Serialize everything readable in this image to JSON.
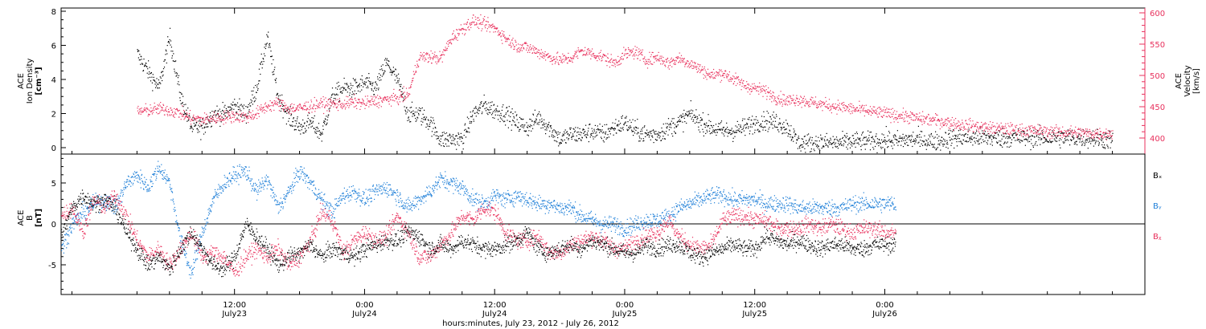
{
  "colors": {
    "axis": "#000000",
    "density": "#000000",
    "velocity": "#e8305c",
    "bx": "#000000",
    "by": "#1e7fd8",
    "bz": "#e8305c"
  },
  "chart_data": [
    {
      "type": "scatter",
      "panel": "top",
      "ylabel": "ACE\nIon Density\n[cm⁻³]",
      "ylabel_lines": [
        "ACE",
        "Ion Density",
        "[cm⁻³]"
      ],
      "y_ticks": [
        "0",
        "2",
        "4",
        "6",
        "8"
      ],
      "ylim": [
        -0.4,
        8.2
      ],
      "y2label_lines": [
        "ACE",
        "Velocity",
        "[km/s]"
      ],
      "y2_ticks": [
        "400",
        "450",
        "500",
        "550",
        "600"
      ],
      "y2lim": [
        380,
        607
      ],
      "x_unit": "hours since 00:00 July 23, 2012",
      "xlim": [
        3.0,
        94.5
      ],
      "series": [
        {
          "name": "Ion Density",
          "color": "#000000",
          "x": [
            3.0,
            4.0,
            5.0,
            6.0,
            7.0,
            8.0,
            9.0,
            10.0,
            11.0,
            12.0,
            13.0,
            14.0,
            15.0,
            16.0,
            17.0,
            18.0,
            19.0,
            20.0,
            21.0,
            22.0,
            23.0,
            24.0,
            25.0,
            26.0,
            27.0,
            28.0,
            29.0,
            30.0,
            31.0,
            32.0,
            33.0,
            34.0,
            35.0,
            36.0,
            37.0,
            38.0,
            39.0,
            40.0,
            41.0,
            42.0,
            43.0,
            44.0,
            45.0,
            46.0,
            47.0,
            48.0,
            49.0,
            50.0,
            51.0,
            52.0,
            53.0,
            54.0,
            55.0,
            56.0,
            57.0,
            58.0,
            59.0,
            60.0,
            61.0,
            62.0,
            63.0,
            64.0,
            65.0,
            66.0,
            67.0,
            68.0,
            69.0,
            70.0,
            71.0,
            72.0,
            73.0,
            74.0,
            75.0,
            76.0,
            77.0,
            78.0,
            79.0,
            80.0,
            81.0,
            82.0,
            83.0,
            84.0,
            85.0,
            86.0,
            87.0,
            88.0,
            89.0,
            90.0,
            91.0,
            92.0,
            93.0
          ],
          "values": [
            5.5,
            4.5,
            3.5,
            6.5,
            3.0,
            1.2,
            1.2,
            2.0,
            2.0,
            2.5,
            2.0,
            3.5,
            6.5,
            3.0,
            1.8,
            1.2,
            1.5,
            0.8,
            3.0,
            3.5,
            3.5,
            3.8,
            3.5,
            5.0,
            4.0,
            2.0,
            2.0,
            1.5,
            0.5,
            0.5,
            0.5,
            2.0,
            2.5,
            2.2,
            2.0,
            1.5,
            1.2,
            1.8,
            1.2,
            0.5,
            0.8,
            0.8,
            1.0,
            0.8,
            1.2,
            1.5,
            1.0,
            0.8,
            0.8,
            1.2,
            1.5,
            2.0,
            1.5,
            1.2,
            1.0,
            1.0,
            1.2,
            1.5,
            1.6,
            1.5,
            1.2,
            0.3,
            0.3,
            0.3,
            0.3,
            0.3,
            0.4,
            0.4,
            0.4,
            0.5,
            0.4,
            0.5,
            0.5,
            0.4,
            0.4,
            0.6,
            0.6,
            0.6,
            0.6,
            0.6,
            0.6,
            0.6,
            0.6,
            0.6,
            0.6,
            0.6,
            0.6,
            0.6,
            0.6,
            0.5,
            0.5
          ]
        },
        {
          "name": "Velocity",
          "axis": "right",
          "color": "#e8305c",
          "x": [
            3.0,
            4.0,
            5.0,
            6.0,
            7.0,
            8.0,
            9.0,
            10.0,
            11.0,
            12.0,
            13.0,
            14.0,
            15.0,
            16.0,
            17.0,
            18.0,
            19.0,
            20.0,
            21.0,
            22.0,
            23.0,
            24.0,
            25.0,
            26.0,
            27.0,
            28.0,
            29.0,
            30.0,
            31.0,
            32.0,
            33.0,
            34.0,
            35.0,
            36.0,
            37.0,
            38.0,
            39.0,
            40.0,
            41.0,
            42.0,
            43.0,
            44.0,
            45.0,
            46.0,
            47.0,
            48.0,
            49.0,
            50.0,
            51.0,
            52.0,
            53.0,
            54.0,
            55.0,
            56.0,
            57.0,
            58.0,
            59.0,
            60.0,
            61.0,
            62.0,
            63.0,
            64.0,
            65.0,
            66.0,
            67.0,
            68.0,
            69.0,
            70.0,
            71.0,
            72.0,
            73.0,
            74.0,
            75.0,
            76.0,
            77.0,
            78.0,
            79.0,
            80.0,
            81.0,
            82.0,
            83.0,
            84.0,
            85.0,
            86.0,
            87.0,
            88.0,
            89.0,
            90.0,
            91.0,
            92.0,
            93.0
          ],
          "values": [
            443,
            445,
            447,
            445,
            440,
            432,
            430,
            432,
            434,
            436,
            434,
            440,
            452,
            456,
            448,
            448,
            452,
            455,
            455,
            455,
            458,
            456,
            460,
            462,
            465,
            470,
            530,
            530,
            528,
            560,
            575,
            588,
            582,
            576,
            560,
            548,
            545,
            538,
            530,
            525,
            528,
            540,
            535,
            530,
            520,
            535,
            538,
            525,
            530,
            520,
            528,
            520,
            510,
            500,
            505,
            495,
            485,
            480,
            475,
            465,
            460,
            463,
            458,
            455,
            452,
            450,
            447,
            445,
            442,
            440,
            437,
            435,
            432,
            430,
            428,
            425,
            422,
            420,
            418,
            416,
            415,
            414,
            413,
            412,
            411,
            410,
            410,
            409,
            408,
            408,
            408
          ]
        }
      ]
    },
    {
      "type": "scatter",
      "panel": "bottom",
      "ylabel_lines": [
        "ACE",
        "B",
        "[nT]"
      ],
      "y_ticks": [
        "-5",
        "0",
        "5"
      ],
      "ylim": [
        -8.0,
        8.0
      ],
      "x_ticks": [
        {
          "x": 12,
          "line1": "12:00",
          "line2": "July23"
        },
        {
          "x": 24,
          "line1": "0:00",
          "line2": "July24"
        },
        {
          "x": 36,
          "line1": "12:00",
          "line2": "July24"
        },
        {
          "x": 48,
          "line1": "0:00",
          "line2": "July25"
        },
        {
          "x": 60,
          "line1": "12:00",
          "line2": "July25"
        },
        {
          "x": 72,
          "line1": "0:00",
          "line2": "July26"
        }
      ],
      "xlabel": "hours:minutes, July 23, 2012 - July 26, 2012",
      "x_unit": "hours since 00:00 July 23, 2012",
      "xlim": [
        -4.0,
        96.0
      ],
      "series": [
        {
          "name": "Bₓ",
          "color": "#000000",
          "x": [
            -4.0,
            -3.0,
            -2.0,
            -1.0,
            0.0,
            1.0,
            2.0,
            3.0,
            4.0,
            5.0,
            6.0,
            7.0,
            8.0,
            9.0,
            10.0,
            11.0,
            12.0,
            13.0,
            14.0,
            15.0,
            16.0,
            17.0,
            18.0,
            19.0,
            20.0,
            21.0,
            22.0,
            23.0,
            24.0,
            25.0,
            26.0,
            27.0,
            28.0,
            29.0,
            30.0,
            31.0,
            32.0,
            33.0,
            34.0,
            35.0,
            36.0,
            37.0,
            38.0,
            39.0,
            40.0,
            41.0,
            42.0,
            43.0,
            44.0,
            45.0,
            46.0,
            47.0,
            48.0,
            49.0,
            50.0,
            51.0,
            52.0,
            53.0,
            54.0,
            55.0,
            56.0,
            57.0,
            58.0,
            59.0,
            60.0,
            61.0,
            62.0,
            63.0,
            64.0,
            65.0,
            66.0,
            67.0,
            68.0,
            69.0,
            70.0,
            71.0,
            72.0,
            73.0
          ],
          "values": [
            -1.5,
            2.0,
            3.5,
            2.5,
            3.0,
            2.0,
            -1.0,
            -3.0,
            -5.0,
            -4.0,
            -5.5,
            -3.0,
            -1.0,
            -3.0,
            -5.0,
            -5.5,
            -4.0,
            0.0,
            -1.5,
            -3.0,
            -5.0,
            -4.0,
            -3.5,
            -2.5,
            -4.0,
            -3.0,
            -3.5,
            -4.0,
            -3.0,
            -2.5,
            -2.0,
            -2.0,
            -1.0,
            -1.5,
            -3.0,
            -2.5,
            -3.0,
            -2.0,
            -2.5,
            -3.0,
            -3.0,
            -2.5,
            -2.0,
            -1.0,
            -3.0,
            -3.5,
            -3.0,
            -2.5,
            -3.0,
            -2.0,
            -2.5,
            -3.0,
            -3.5,
            -3.5,
            -2.5,
            -3.0,
            -2.5,
            -2.5,
            -3.5,
            -4.0,
            -3.5,
            -3.0,
            -2.5,
            -3.0,
            -3.0,
            -1.5,
            -2.0,
            -2.5,
            -2.0,
            -2.5,
            -3.0,
            -2.5,
            -2.5,
            -3.0,
            -3.0,
            -2.5,
            -2.5,
            -2.5
          ]
        },
        {
          "name": "Bᵧ",
          "color": "#1e7fd8",
          "x": [
            -4.0,
            -3.0,
            -2.0,
            -1.0,
            0.0,
            1.0,
            2.0,
            3.0,
            4.0,
            5.0,
            6.0,
            7.0,
            8.0,
            9.0,
            10.0,
            11.0,
            12.0,
            13.0,
            14.0,
            15.0,
            16.0,
            17.0,
            18.0,
            19.0,
            20.0,
            21.0,
            22.0,
            23.0,
            24.0,
            25.0,
            26.0,
            27.0,
            28.0,
            29.0,
            30.0,
            31.0,
            32.0,
            33.0,
            34.0,
            35.0,
            36.0,
            37.0,
            38.0,
            39.0,
            40.0,
            41.0,
            42.0,
            43.0,
            44.0,
            45.0,
            46.0,
            47.0,
            48.0,
            49.0,
            50.0,
            51.0,
            52.0,
            53.0,
            54.0,
            55.0,
            56.0,
            57.0,
            58.0,
            59.0,
            60.0,
            61.0,
            62.0,
            63.0,
            64.0,
            65.0,
            66.0,
            67.0,
            68.0,
            69.0,
            70.0,
            71.0,
            72.0,
            73.0
          ],
          "values": [
            -3.0,
            0.0,
            1.5,
            2.5,
            3.0,
            2.0,
            5.0,
            6.0,
            4.5,
            7.0,
            5.0,
            -2.0,
            -6.0,
            -1.0,
            3.0,
            5.0,
            6.0,
            6.5,
            4.0,
            5.5,
            2.0,
            4.0,
            6.5,
            5.0,
            3.0,
            1.5,
            3.5,
            4.0,
            3.0,
            4.0,
            4.5,
            3.5,
            2.0,
            3.0,
            4.0,
            5.5,
            5.0,
            4.5,
            3.0,
            2.5,
            3.5,
            3.0,
            3.5,
            3.0,
            2.5,
            2.5,
            2.0,
            2.0,
            1.0,
            0.5,
            0.0,
            0.0,
            -0.5,
            0.0,
            0.5,
            0.5,
            1.0,
            2.0,
            2.5,
            3.0,
            3.5,
            3.5,
            3.0,
            3.0,
            3.0,
            2.5,
            2.5,
            2.5,
            2.0,
            2.0,
            2.0,
            2.0,
            2.0,
            2.5,
            2.5,
            2.5,
            2.5,
            2.5
          ]
        },
        {
          "name": "Bᵪ",
          "color": "#e8305c",
          "x": [
            -4.0,
            -3.0,
            -2.0,
            -1.0,
            0.0,
            1.0,
            2.0,
            3.0,
            4.0,
            5.0,
            6.0,
            7.0,
            8.0,
            9.0,
            10.0,
            11.0,
            12.0,
            13.0,
            14.0,
            15.0,
            16.0,
            17.0,
            18.0,
            19.0,
            20.0,
            21.0,
            22.0,
            23.0,
            24.0,
            25.0,
            26.0,
            27.0,
            28.0,
            29.0,
            30.0,
            31.0,
            32.0,
            33.0,
            34.0,
            35.0,
            36.0,
            37.0,
            38.0,
            39.0,
            40.0,
            41.0,
            42.0,
            43.0,
            44.0,
            45.0,
            46.0,
            47.0,
            48.0,
            49.0,
            50.0,
            51.0,
            52.0,
            53.0,
            54.0,
            55.0,
            56.0,
            57.0,
            58.0,
            59.0,
            60.0,
            61.0,
            62.0,
            63.0,
            64.0,
            65.0,
            66.0,
            67.0,
            68.0,
            69.0,
            70.0,
            71.0,
            72.0,
            73.0
          ],
          "values": [
            1.0,
            2.0,
            -1.0,
            3.0,
            2.0,
            3.5,
            1.0,
            -2.0,
            -4.0,
            -3.0,
            -5.0,
            -3.0,
            -1.0,
            -4.0,
            -3.5,
            -4.0,
            -6.0,
            -4.0,
            -3.0,
            -4.0,
            -3.0,
            -5.0,
            -4.0,
            -2.0,
            1.5,
            0.5,
            -3.5,
            -2.0,
            -1.0,
            -2.0,
            -1.5,
            1.0,
            -1.0,
            -4.0,
            -4.0,
            -2.5,
            -1.0,
            1.0,
            0.5,
            2.0,
            1.5,
            -1.0,
            -2.0,
            -2.0,
            -1.5,
            -3.5,
            -3.5,
            -2.5,
            -2.0,
            -1.5,
            -2.0,
            -3.0,
            -3.0,
            -2.0,
            -1.5,
            -1.0,
            0.5,
            -1.5,
            -2.5,
            -3.0,
            -2.5,
            0.5,
            1.0,
            1.0,
            0.5,
            0.5,
            -0.5,
            -0.5,
            -0.5,
            0.0,
            -0.5,
            0.0,
            -0.5,
            -1.0,
            -0.5,
            -0.5,
            -1.0,
            -1.0
          ]
        }
      ]
    }
  ]
}
